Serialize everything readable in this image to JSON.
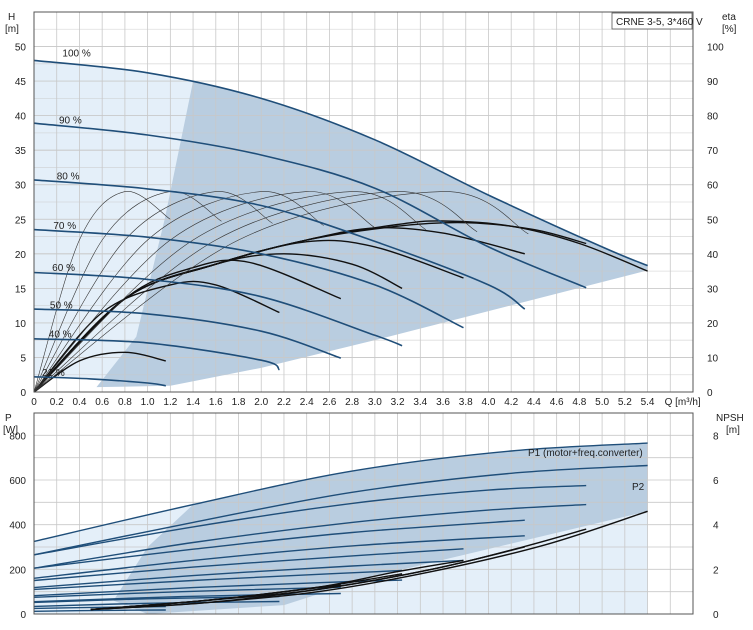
{
  "chart_data": [
    {
      "type": "line",
      "name": "performance",
      "title": "",
      "legend_box": "CRNE 3-5, 3*460 V",
      "xlabel": "Q [m³/h]",
      "ylabel_left": "H\n[m]",
      "ylabel_right": "eta\n[%]",
      "xlim": [
        0,
        5.8
      ],
      "ylim": [
        0,
        55
      ],
      "y2lim": [
        0,
        110
      ],
      "x_ticks": [
        "0",
        "0.2",
        "0.4",
        "0.6",
        "0.8",
        "1.0",
        "1.2",
        "1.4",
        "1.6",
        "1.8",
        "2.0",
        "2.2",
        "2.4",
        "2.6",
        "2.8",
        "3.0",
        "3.2",
        "3.4",
        "3.6",
        "3.8",
        "4.0",
        "4.2",
        "4.4",
        "4.6",
        "4.8",
        "5.0",
        "5.2",
        "5.4"
      ],
      "y_ticks": [
        "0",
        "5",
        "10",
        "15",
        "20",
        "25",
        "30",
        "35",
        "40",
        "45",
        "50"
      ],
      "y2_ticks": [
        "0",
        "10",
        "20",
        "30",
        "40",
        "50",
        "60",
        "70",
        "80",
        "90",
        "100"
      ],
      "operating_range_fill": "#b9cde0",
      "extended_range_fill": "#e4eff9",
      "curve_color": "#1f4e79",
      "eta_color": "#111111",
      "speed_labels": [
        "100 %",
        "90 %",
        "80 %",
        "70 %",
        "60 %",
        "50 %",
        "40 %",
        "21 %"
      ],
      "head_curves": [
        {
          "speed": 100,
          "x": [
            0,
            1.0,
            2.0,
            3.0,
            4.0,
            5.0,
            5.4
          ],
          "y": [
            48,
            46.2,
            42.5,
            36.5,
            28.5,
            21.0,
            18.3
          ]
        },
        {
          "speed": 90,
          "x": [
            0,
            1.0,
            2.0,
            3.0,
            4.0,
            4.86
          ],
          "y": [
            38.9,
            37.2,
            34.3,
            29.5,
            21.0,
            15.1
          ]
        },
        {
          "speed": 80,
          "x": [
            0,
            1.0,
            2.0,
            3.0,
            4.0,
            4.32
          ],
          "y": [
            30.7,
            29.4,
            27.0,
            21.8,
            15.5,
            12.0
          ]
        },
        {
          "speed": 70,
          "x": [
            0,
            1.0,
            2.0,
            3.0,
            3.78
          ],
          "y": [
            23.5,
            22.4,
            20.0,
            15.5,
            9.3
          ]
        },
        {
          "speed": 60,
          "x": [
            0,
            1.0,
            2.0,
            3.0,
            3.24
          ],
          "y": [
            17.3,
            16.3,
            13.8,
            8.2,
            6.7
          ]
        },
        {
          "speed": 50,
          "x": [
            0,
            1.0,
            2.0,
            2.7
          ],
          "y": [
            12.0,
            11.3,
            8.8,
            4.9
          ]
        },
        {
          "speed": 40,
          "x": [
            0,
            1.0,
            2.0,
            2.16
          ],
          "y": [
            7.7,
            7.1,
            4.6,
            3.2
          ]
        },
        {
          "speed": 21,
          "x": [
            0,
            0.5,
            1.0,
            1.16
          ],
          "y": [
            2.2,
            1.9,
            1.3,
            0.9
          ]
        }
      ],
      "eta_curves": [
        {
          "speed": 100,
          "x": [
            0,
            0.8,
            1.6,
            2.4,
            3.2,
            3.6,
            4.2,
            4.8,
            5.4
          ],
          "y": [
            0,
            27,
            37,
            44,
            48.5,
            49.5,
            48,
            43,
            35
          ]
        },
        {
          "speed": 90,
          "x": [
            0,
            0.8,
            1.6,
            2.4,
            3.2,
            3.8,
            4.4,
            4.86
          ],
          "y": [
            0,
            27,
            37,
            44,
            48,
            49,
            47,
            43
          ]
        },
        {
          "speed": 80,
          "x": [
            0,
            0.8,
            1.6,
            2.4,
            3.0,
            3.6,
            4.32
          ],
          "y": [
            0,
            27,
            37,
            44,
            47.5,
            46,
            40
          ]
        },
        {
          "speed": 70,
          "x": [
            0,
            0.8,
            1.6,
            2.4,
            3.0,
            3.78
          ],
          "y": [
            0,
            27,
            37,
            43.5,
            42,
            33
          ]
        },
        {
          "speed": 60,
          "x": [
            0,
            0.8,
            1.6,
            2.2,
            2.8,
            3.24
          ],
          "y": [
            0,
            27,
            37,
            40,
            37,
            30
          ]
        },
        {
          "speed": 50,
          "x": [
            0,
            0.8,
            1.4,
            1.9,
            2.7
          ],
          "y": [
            0,
            27,
            36,
            37.5,
            27
          ]
        },
        {
          "speed": 40,
          "x": [
            0,
            0.6,
            1.2,
            1.6,
            2.16
          ],
          "y": [
            0,
            23,
            31,
            31,
            23
          ]
        },
        {
          "speed": 21,
          "x": [
            0,
            0.4,
            0.8,
            1.16
          ],
          "y": [
            0,
            9,
            11.5,
            9
          ]
        }
      ]
    },
    {
      "type": "line",
      "name": "power-npsh",
      "title": "",
      "xlabel": "",
      "ylabel_left": "P\n[W]",
      "ylabel_right": "NPSH\n[m]",
      "xlim": [
        0,
        5.8
      ],
      "ylim": [
        0,
        900
      ],
      "y2lim": [
        0,
        9
      ],
      "y_ticks": [
        "0",
        "200",
        "400",
        "600",
        "800"
      ],
      "y2_ticks": [
        "0",
        "2",
        "4",
        "6",
        "8"
      ],
      "series_labels": [
        "P1 (motor+freq.converter)",
        "P2"
      ],
      "p1_curves": [
        {
          "speed": 100,
          "x": [
            0,
            1.4,
            2.8,
            4.2,
            5.4
          ],
          "y": [
            325,
            490,
            640,
            730,
            765
          ]
        },
        {
          "speed": 90,
          "x": [
            0,
            1.4,
            2.8,
            4.0,
            4.86
          ],
          "y": [
            265,
            390,
            495,
            555,
            575
          ]
        },
        {
          "speed": 80,
          "x": [
            0,
            1.4,
            2.8,
            4.32
          ],
          "y": [
            205,
            290,
            365,
            420
          ]
        },
        {
          "speed": 70,
          "x": [
            0,
            1.4,
            2.8,
            3.78
          ],
          "y": [
            150,
            210,
            260,
            292
          ]
        },
        {
          "speed": 60,
          "x": [
            0,
            1.4,
            2.6,
            3.24
          ],
          "y": [
            110,
            150,
            180,
            195
          ]
        },
        {
          "speed": 50,
          "x": [
            0,
            1.3,
            2.7
          ],
          "y": [
            75,
            100,
            120
          ]
        },
        {
          "speed": 40,
          "x": [
            0,
            1.0,
            2.16
          ],
          "y": [
            52,
            68,
            78
          ]
        },
        {
          "speed": 21,
          "x": [
            0,
            0.6,
            1.16
          ],
          "y": [
            25,
            30,
            33
          ]
        }
      ],
      "p2_curves": [
        {
          "speed": 100,
          "x": [
            0,
            1.4,
            2.8,
            4.2,
            5.4
          ],
          "y": [
            265,
            410,
            545,
            630,
            665
          ]
        },
        {
          "speed": 90,
          "x": [
            0,
            1.4,
            2.8,
            4.0,
            4.86
          ],
          "y": [
            205,
            320,
            410,
            465,
            490
          ]
        },
        {
          "speed": 80,
          "x": [
            0,
            1.4,
            2.8,
            4.32
          ],
          "y": [
            160,
            240,
            305,
            350
          ]
        },
        {
          "speed": 70,
          "x": [
            0,
            1.4,
            2.8,
            3.78
          ],
          "y": [
            118,
            172,
            215,
            240
          ]
        },
        {
          "speed": 60,
          "x": [
            0,
            1.4,
            2.6,
            3.24
          ],
          "y": [
            82,
            118,
            142,
            152
          ]
        },
        {
          "speed": 50,
          "x": [
            0,
            1.3,
            2.7
          ],
          "y": [
            55,
            78,
            92
          ]
        },
        {
          "speed": 40,
          "x": [
            0,
            1.0,
            2.16
          ],
          "y": [
            34,
            48,
            56
          ]
        },
        {
          "speed": 21,
          "x": [
            0,
            0.6,
            1.16
          ],
          "y": [
            12,
            16,
            18
          ]
        }
      ],
      "npsh_curves": [
        {
          "speed": 100,
          "x": [
            0.5,
            1.5,
            2.5,
            3.5,
            4.5,
            5.4
          ],
          "y": [
            0.2,
            0.5,
            1.0,
            1.9,
            3.1,
            4.6
          ]
        },
        {
          "speed": 90,
          "x": [
            0.5,
            1.5,
            2.5,
            3.5,
            4.3,
            4.86
          ],
          "y": [
            0.2,
            0.5,
            1.1,
            2.0,
            3.0,
            3.8
          ]
        },
        {
          "speed": 80,
          "x": [
            0.5,
            1.5,
            2.5,
            3.5,
            4.32
          ],
          "y": [
            0.2,
            0.6,
            1.1,
            2.0,
            3.0
          ]
        },
        {
          "speed": 70,
          "x": [
            0.5,
            1.5,
            2.5,
            3.2,
            3.78
          ],
          "y": [
            0.2,
            0.6,
            1.2,
            1.9,
            2.4
          ]
        },
        {
          "speed": 60,
          "x": [
            0.5,
            1.5,
            2.5,
            3.24
          ],
          "y": [
            0.2,
            0.6,
            1.2,
            1.8
          ]
        },
        {
          "speed": 50,
          "x": [
            0.5,
            1.5,
            2.2,
            2.7
          ],
          "y": [
            0.2,
            0.6,
            1.0,
            1.3
          ]
        }
      ]
    }
  ]
}
